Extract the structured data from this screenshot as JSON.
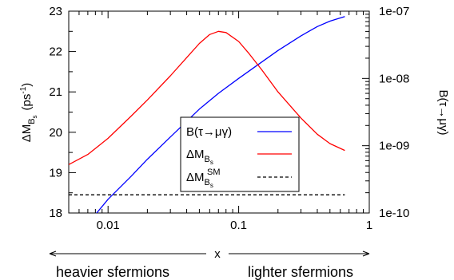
{
  "chart_data": {
    "type": "line",
    "x_scale": "log",
    "xlim": [
      0.005,
      1
    ],
    "ylim_left": [
      18,
      23
    ],
    "ylim_right": [
      1e-10,
      1e-07
    ],
    "right_scale": "log",
    "grid": false,
    "legend_placement": "center-right, inside plot",
    "xlabel": "x",
    "ylabel_left": {
      "main": "ΔM",
      "sub": "B",
      "subsub": "s",
      "unit": "(ps",
      "unit_exp": "-1",
      "unit_close": ")"
    },
    "ylabel_right": "B(τ→μγ)",
    "x_ticks": [
      {
        "value": 0.01,
        "label": "0.01"
      },
      {
        "value": 0.1,
        "label": "0.1"
      },
      {
        "value": 1,
        "label": "1"
      }
    ],
    "y_ticks_left": [
      {
        "value": 18,
        "label": "18"
      },
      {
        "value": 19,
        "label": "19"
      },
      {
        "value": 20,
        "label": "20"
      },
      {
        "value": 21,
        "label": "21"
      },
      {
        "value": 22,
        "label": "22"
      },
      {
        "value": 23,
        "label": "23"
      }
    ],
    "y_ticks_right": [
      {
        "value": 1e-10,
        "label": "1e-10"
      },
      {
        "value": 1e-09,
        "label": "1e-09"
      },
      {
        "value": 1e-08,
        "label": "1e-08"
      },
      {
        "value": 1e-07,
        "label": "1e-07"
      }
    ],
    "series": [
      {
        "name": "B(τ→μγ)",
        "axis": "right",
        "color": "#0000ff",
        "style": "solid",
        "x": [
          0.008,
          0.01,
          0.015,
          0.02,
          0.03,
          0.05,
          0.07,
          0.1,
          0.15,
          0.2,
          0.3,
          0.4,
          0.5,
          0.65
        ],
        "y": [
          9.5e-11,
          1.6e-10,
          3.5e-10,
          6.3e-10,
          1.35e-09,
          3.5e-09,
          6e-09,
          1e-08,
          1.75e-08,
          2.6e-08,
          4.3e-08,
          5.9e-08,
          7.1e-08,
          8.3e-08
        ]
      },
      {
        "name": "ΔM_Bs",
        "axis": "left",
        "color": "#ff0000",
        "style": "solid",
        "x": [
          0.005,
          0.007,
          0.01,
          0.015,
          0.02,
          0.03,
          0.04,
          0.05,
          0.06,
          0.07,
          0.08,
          0.1,
          0.12,
          0.15,
          0.2,
          0.3,
          0.4,
          0.5,
          0.65
        ],
        "y": [
          19.2,
          19.45,
          19.85,
          20.4,
          20.8,
          21.4,
          21.85,
          22.2,
          22.42,
          22.5,
          22.47,
          22.25,
          21.95,
          21.55,
          21.0,
          20.35,
          19.95,
          19.72,
          19.55
        ]
      },
      {
        "name": "ΔM_Bs^SM",
        "axis": "left",
        "color": "#000000",
        "style": "dashed",
        "x": [
          0.005,
          0.65
        ],
        "y": [
          18.45,
          18.45
        ]
      }
    ],
    "legend": [
      {
        "main": "B(τ→μγ)",
        "sub": "",
        "subsub": "",
        "sup": "",
        "color": "#0000ff",
        "dash": false
      },
      {
        "main": "ΔM",
        "sub": "B",
        "subsub": "s",
        "sup": "",
        "color": "#ff0000",
        "dash": false
      },
      {
        "main": "ΔM",
        "sub": "B",
        "subsub": "s",
        "sup": "SM",
        "color": "#000000",
        "dash": true
      }
    ],
    "bottom_annotations": {
      "left_arrow_label": "heavier sfermions",
      "right_arrow_label": "lighter sfermions"
    }
  }
}
